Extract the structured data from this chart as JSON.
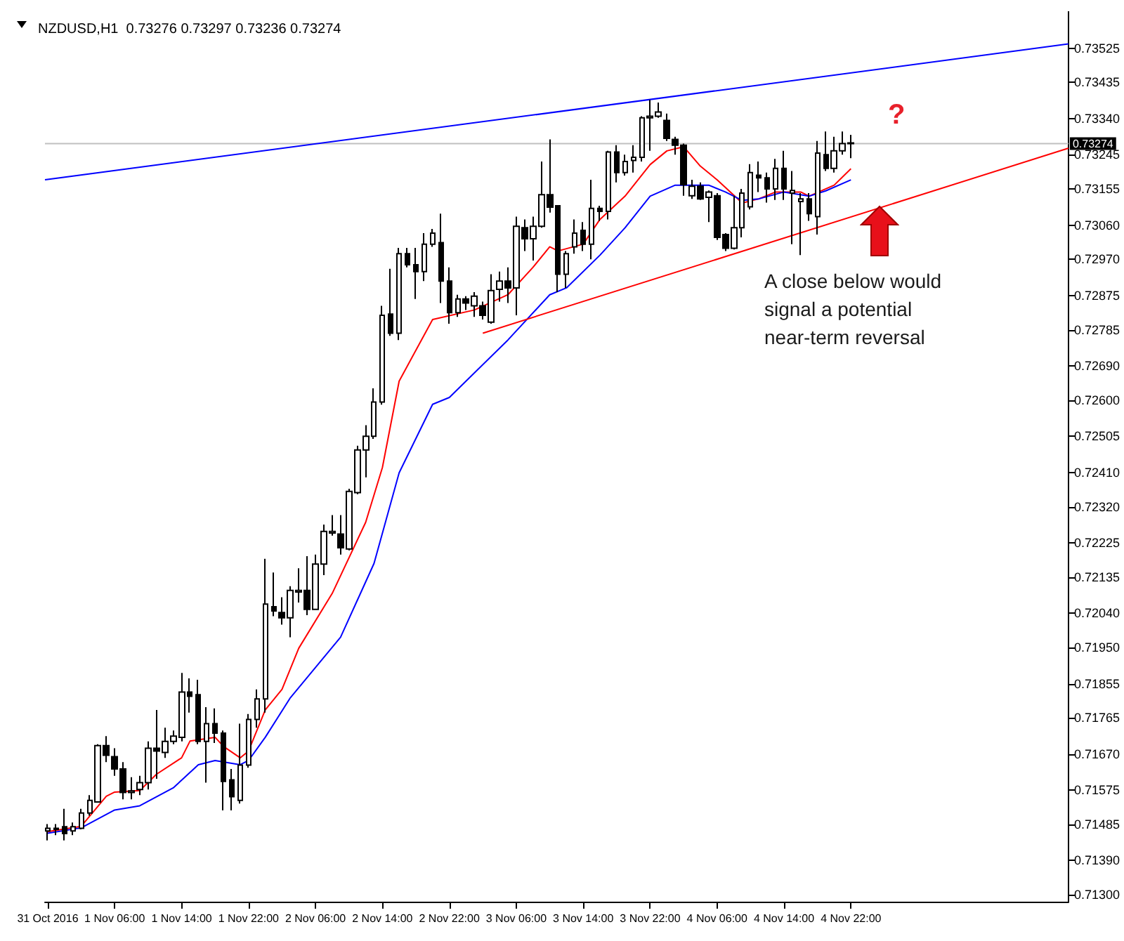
{
  "chart_data": {
    "type": "candlestick",
    "title": "NZDUSD,H1  0.73276 0.73297 0.73236 0.73274",
    "x": [
      "2016-10-31T22:00",
      "2016-10-31T23:00",
      "2016-11-01T00:00",
      "2016-11-01T01:00",
      "2016-11-01T02:00",
      "2016-11-01T03:00",
      "2016-11-01T04:00",
      "2016-11-01T05:00",
      "2016-11-01T06:00",
      "2016-11-01T07:00",
      "2016-11-01T08:00",
      "2016-11-01T09:00",
      "2016-11-01T10:00",
      "2016-11-01T11:00",
      "2016-11-01T12:00",
      "2016-11-01T13:00",
      "2016-11-01T14:00",
      "2016-11-01T15:00",
      "2016-11-01T16:00",
      "2016-11-01T17:00",
      "2016-11-01T18:00",
      "2016-11-01T19:00",
      "2016-11-01T20:00",
      "2016-11-01T21:00",
      "2016-11-01T22:00",
      "2016-11-01T23:00",
      "2016-11-02T00:00",
      "2016-11-02T01:00",
      "2016-11-02T02:00",
      "2016-11-02T03:00",
      "2016-11-02T04:00",
      "2016-11-02T05:00",
      "2016-11-02T06:00",
      "2016-11-02T07:00",
      "2016-11-02T08:00",
      "2016-11-02T09:00",
      "2016-11-02T10:00",
      "2016-11-02T11:00",
      "2016-11-02T12:00",
      "2016-11-02T13:00",
      "2016-11-02T14:00",
      "2016-11-02T15:00",
      "2016-11-02T16:00",
      "2016-11-02T17:00",
      "2016-11-02T18:00",
      "2016-11-02T19:00",
      "2016-11-02T20:00",
      "2016-11-02T21:00",
      "2016-11-02T22:00",
      "2016-11-02T23:00",
      "2016-11-03T00:00",
      "2016-11-03T01:00",
      "2016-11-03T02:00",
      "2016-11-03T03:00",
      "2016-11-03T04:00",
      "2016-11-03T05:00",
      "2016-11-03T06:00",
      "2016-11-03T07:00",
      "2016-11-03T08:00",
      "2016-11-03T09:00",
      "2016-11-03T10:00",
      "2016-11-03T11:00",
      "2016-11-03T12:00",
      "2016-11-03T13:00",
      "2016-11-03T14:00",
      "2016-11-03T15:00",
      "2016-11-03T16:00",
      "2016-11-03T17:00",
      "2016-11-03T18:00",
      "2016-11-03T19:00",
      "2016-11-03T20:00",
      "2016-11-03T21:00",
      "2016-11-03T22:00",
      "2016-11-03T23:00",
      "2016-11-04T00:00",
      "2016-11-04T01:00",
      "2016-11-04T02:00",
      "2016-11-04T03:00",
      "2016-11-04T04:00",
      "2016-11-04T05:00",
      "2016-11-04T06:00",
      "2016-11-04T07:00",
      "2016-11-04T08:00",
      "2016-11-04T09:00",
      "2016-11-04T10:00",
      "2016-11-04T11:00",
      "2016-11-04T12:00",
      "2016-11-04T13:00",
      "2016-11-04T14:00",
      "2016-11-04T15:00",
      "2016-11-04T16:00",
      "2016-11-04T17:00",
      "2016-11-04T18:00",
      "2016-11-04T19:00",
      "2016-11-04T20:00",
      "2016-11-04T21:00",
      "2016-11-04T22:00"
    ],
    "ohlc": [
      [
        0.71468,
        0.71486,
        0.71443,
        0.71475
      ],
      [
        0.71475,
        0.71486,
        0.71457,
        0.71472
      ],
      [
        0.71479,
        0.71526,
        0.71443,
        0.71461
      ],
      [
        0.71468,
        0.7149,
        0.71457,
        0.71479
      ],
      [
        0.71475,
        0.71526,
        0.71472,
        0.71515
      ],
      [
        0.71515,
        0.71562,
        0.71508,
        0.71548
      ],
      [
        0.71544,
        0.71696,
        0.71544,
        0.71692
      ],
      [
        0.71692,
        0.71717,
        0.71649,
        0.71667
      ],
      [
        0.71663,
        0.71685,
        0.71613,
        0.71631
      ],
      [
        0.71631,
        0.71649,
        0.71551,
        0.71569
      ],
      [
        0.71569,
        0.71609,
        0.71551,
        0.71573
      ],
      [
        0.71577,
        0.71613,
        0.71562,
        0.71595
      ],
      [
        0.71595,
        0.71703,
        0.71577,
        0.71685
      ],
      [
        0.71685,
        0.71786,
        0.71605,
        0.71678
      ],
      [
        0.71674,
        0.71739,
        0.7166,
        0.71703
      ],
      [
        0.71703,
        0.71732,
        0.71696,
        0.71717
      ],
      [
        0.71714,
        0.71883,
        0.71703,
        0.71833
      ],
      [
        0.71833,
        0.71869,
        0.71779,
        0.71822
      ],
      [
        0.71826,
        0.71865,
        0.71696,
        0.71703
      ],
      [
        0.71703,
        0.71793,
        0.71595,
        0.7175
      ],
      [
        0.7175,
        0.7179,
        0.71699,
        0.71725
      ],
      [
        0.71725,
        0.71732,
        0.71522,
        0.71598
      ],
      [
        0.71602,
        0.71631,
        0.71522,
        0.71558
      ],
      [
        0.71548,
        0.7175,
        0.7154,
        0.71641
      ],
      [
        0.71641,
        0.71775,
        0.71634,
        0.71761
      ],
      [
        0.71761,
        0.7184,
        0.71739,
        0.71815
      ],
      [
        0.71815,
        0.72183,
        0.71779,
        0.72064
      ],
      [
        0.72057,
        0.72147,
        0.72032,
        0.72046
      ],
      [
        0.72042,
        0.72082,
        0.7201,
        0.72028
      ],
      [
        0.72028,
        0.72111,
        0.71977,
        0.721
      ],
      [
        0.72096,
        0.72158,
        0.72068,
        0.721
      ],
      [
        0.721,
        0.7219,
        0.72035,
        0.7205
      ],
      [
        0.7205,
        0.72194,
        0.7205,
        0.72169
      ],
      [
        0.72169,
        0.72273,
        0.7214,
        0.72255
      ],
      [
        0.72251,
        0.72298,
        0.72244,
        0.72255
      ],
      [
        0.72248,
        0.72298,
        0.72194,
        0.72212
      ],
      [
        0.72209,
        0.72367,
        0.72205,
        0.7236
      ],
      [
        0.72357,
        0.7248,
        0.72353,
        0.72469
      ],
      [
        0.72469,
        0.72534,
        0.72397,
        0.72505
      ],
      [
        0.72505,
        0.72631,
        0.72498,
        0.72595
      ],
      [
        0.72595,
        0.72848,
        0.72588,
        0.72823
      ],
      [
        0.72826,
        0.72945,
        0.72769,
        0.72776
      ],
      [
        0.72776,
        0.73,
        0.72758,
        0.72985
      ],
      [
        0.72985,
        0.73,
        0.72949,
        0.72956
      ],
      [
        0.72956,
        0.73,
        0.72866,
        0.72938
      ],
      [
        0.72938,
        0.73039,
        0.72913,
        0.7301
      ],
      [
        0.7301,
        0.7305,
        0.73003,
        0.73039
      ],
      [
        0.73014,
        0.7309,
        0.72855,
        0.72913
      ],
      [
        0.72913,
        0.72949,
        0.72801,
        0.7283
      ],
      [
        0.7283,
        0.72877,
        0.72819,
        0.72866
      ],
      [
        0.72866,
        0.72873,
        0.72837,
        0.72855
      ],
      [
        0.72848,
        0.72884,
        0.72819,
        0.72873
      ],
      [
        0.72848,
        0.72859,
        0.72812,
        0.72823
      ],
      [
        0.72805,
        0.72931,
        0.72801,
        0.72888
      ],
      [
        0.72891,
        0.72938,
        0.72859,
        0.72913
      ],
      [
        0.72913,
        0.72949,
        0.72855,
        0.72895
      ],
      [
        0.72895,
        0.73082,
        0.72823,
        0.73057
      ],
      [
        0.73053,
        0.73075,
        0.72992,
        0.73024
      ],
      [
        0.73024,
        0.73082,
        0.72967,
        0.73057
      ],
      [
        0.73057,
        0.73227,
        0.73053,
        0.7314
      ],
      [
        0.7314,
        0.73285,
        0.73093,
        0.73107
      ],
      [
        0.73111,
        0.73111,
        0.72884,
        0.72931
      ],
      [
        0.72931,
        0.72992,
        0.72895,
        0.72985
      ],
      [
        0.73003,
        0.73075,
        0.72985,
        0.73039
      ],
      [
        0.73046,
        0.73068,
        0.72992,
        0.7301
      ],
      [
        0.7301,
        0.73179,
        0.7297,
        0.73104
      ],
      [
        0.73104,
        0.73111,
        0.73071,
        0.73096
      ],
      [
        0.73096,
        0.73255,
        0.73075,
        0.73252
      ],
      [
        0.73252,
        0.7327,
        0.73172,
        0.73198
      ],
      [
        0.73198,
        0.73245,
        0.7319,
        0.73227
      ],
      [
        0.7323,
        0.7327,
        0.73198,
        0.73238
      ],
      [
        0.73238,
        0.73346,
        0.73227,
        0.73342
      ],
      [
        0.73342,
        0.73389,
        0.73255,
        0.73346
      ],
      [
        0.73346,
        0.73382,
        0.73342,
        0.73357
      ],
      [
        0.73335,
        0.73353,
        0.73281,
        0.73288
      ],
      [
        0.73285,
        0.73292,
        0.73245,
        0.7327
      ],
      [
        0.7327,
        0.73274,
        0.73137,
        0.73166
      ],
      [
        0.73137,
        0.73179,
        0.73129,
        0.73162
      ],
      [
        0.73162,
        0.73172,
        0.73126,
        0.73129
      ],
      [
        0.73133,
        0.73151,
        0.73068,
        0.73147
      ],
      [
        0.73137,
        0.73144,
        0.73021,
        0.73028
      ],
      [
        0.73035,
        0.73039,
        0.72992,
        0.72999
      ],
      [
        0.72999,
        0.73137,
        0.72996,
        0.73053
      ],
      [
        0.73053,
        0.73155,
        0.73028,
        0.73144
      ],
      [
        0.73108,
        0.7322,
        0.73101,
        0.73198
      ],
      [
        0.73191,
        0.73227,
        0.73147,
        0.73184
      ],
      [
        0.73184,
        0.73198,
        0.73119,
        0.73155
      ],
      [
        0.73155,
        0.73234,
        0.73126,
        0.73209
      ],
      [
        0.73209,
        0.73255,
        0.73126,
        0.73155
      ],
      [
        0.73144,
        0.73202,
        0.7301,
        0.73151
      ],
      [
        0.73122,
        0.73144,
        0.72981,
        0.73129
      ],
      [
        0.73129,
        0.73144,
        0.73071,
        0.7309
      ],
      [
        0.73082,
        0.73281,
        0.73035,
        0.73249
      ],
      [
        0.73245,
        0.73306,
        0.73202,
        0.73209
      ],
      [
        0.73209,
        0.73292,
        0.73198,
        0.73255
      ],
      [
        0.73255,
        0.73306,
        0.73245,
        0.73274
      ],
      [
        0.73276,
        0.73297,
        0.73236,
        0.73274
      ]
    ],
    "series": [
      {
        "type": "line",
        "color": "#ff0000",
        "x": [
          "2016-10-31T22:00",
          "2016-11-01T02:00",
          "2016-11-01T05:00",
          "2016-11-01T06:00",
          "2016-11-01T09:00",
          "2016-11-01T11:00",
          "2016-11-01T14:00",
          "2016-11-01T15:00",
          "2016-11-01T18:00",
          "2016-11-01T19:00",
          "2016-11-01T21:00",
          "2016-11-01T22:00",
          "2016-11-02T00:00",
          "2016-11-02T02:00",
          "2016-11-02T04:00",
          "2016-11-02T08:00",
          "2016-11-02T12:00",
          "2016-11-02T14:00",
          "2016-11-02T16:00",
          "2016-11-02T20:00",
          "2016-11-03T01:00",
          "2016-11-03T05:00",
          "2016-11-03T08:00",
          "2016-11-03T10:00",
          "2016-11-03T11:00",
          "2016-11-03T14:00",
          "2016-11-03T16:00",
          "2016-11-03T19:00",
          "2016-11-03T22:00",
          "2016-11-04T00:00",
          "2016-11-04T02:00",
          "2016-11-04T04:00",
          "2016-11-04T06:00",
          "2016-11-04T09:00",
          "2016-11-04T11:00",
          "2016-11-04T13:00",
          "2016-11-04T16:00",
          "2016-11-04T17:00",
          "2016-11-04T20:00",
          "2016-11-04T22:00"
        ],
        "values": [
          0.71466,
          0.7148,
          0.71559,
          0.7157,
          0.71574,
          0.71617,
          0.7166,
          0.71704,
          0.71714,
          0.7169,
          0.7166,
          0.71678,
          0.71786,
          0.7184,
          0.71948,
          0.72092,
          0.72279,
          0.72423,
          0.7265,
          0.72812,
          0.72837,
          0.72877,
          0.72949,
          0.73003,
          0.72992,
          0.7301,
          0.73075,
          0.73136,
          0.73219,
          0.73255,
          0.73266,
          0.73215,
          0.73179,
          0.73118,
          0.73129,
          0.73147,
          0.73147,
          0.73136,
          0.73165,
          0.73208
        ]
      },
      {
        "type": "line",
        "color": "#0000ff",
        "x": [
          "2016-10-31T22:00",
          "2016-11-01T02:00",
          "2016-11-01T06:00",
          "2016-11-01T09:00",
          "2016-11-01T13:00",
          "2016-11-01T16:00",
          "2016-11-01T18:00",
          "2016-11-01T21:00",
          "2016-11-01T22:00",
          "2016-11-02T00:00",
          "2016-11-02T03:00",
          "2016-11-02T09:00",
          "2016-11-02T13:00",
          "2016-11-02T16:00",
          "2016-11-02T20:00",
          "2016-11-02T22:00",
          "2016-11-03T05:00",
          "2016-11-03T10:00",
          "2016-11-03T12:00",
          "2016-11-03T16:00",
          "2016-11-03T19:00",
          "2016-11-03T22:00",
          "2016-11-04T01:00",
          "2016-11-04T05:00",
          "2016-11-04T07:00",
          "2016-11-04T09:00",
          "2016-11-04T11:00",
          "2016-11-04T14:00",
          "2016-11-04T17:00",
          "2016-11-04T19:00",
          "2016-11-04T22:00"
        ],
        "values": [
          0.71462,
          0.71476,
          0.71523,
          0.71534,
          0.71581,
          0.71642,
          0.71653,
          0.71642,
          0.71653,
          0.71714,
          0.71818,
          0.71977,
          0.72171,
          0.72409,
          0.72589,
          0.72607,
          0.72758,
          0.72877,
          0.72895,
          0.72981,
          0.73053,
          0.73136,
          0.73165,
          0.73165,
          0.73147,
          0.73125,
          0.73129,
          0.73147,
          0.73136,
          0.7315,
          0.73179
        ]
      },
      {
        "type": "line",
        "color": "#0000ff",
        "x": [
          "2016-10-31T21:40",
          "2016-11-06T00:00"
        ],
        "values": [
          0.73179,
          0.73536
        ]
      },
      {
        "type": "line",
        "color": "#ff0000",
        "x": [
          "2016-11-03T02:00",
          "2016-11-06T00:00"
        ],
        "values": [
          0.72776,
          0.73262
        ]
      }
    ],
    "marker": "none",
    "line_style": "solid",
    "xlim": [
      "2016-10-31T21:40",
      "2016-11-06T00:00"
    ],
    "xticks": [
      {
        "value": "2016-10-31T22:00",
        "label": "31 Oct 2016"
      },
      {
        "value": "2016-11-01T06:00",
        "label": "1 Nov 06:00"
      },
      {
        "value": "2016-11-01T14:00",
        "label": "1 Nov 14:00"
      },
      {
        "value": "2016-11-01T22:00",
        "label": "1 Nov 22:00"
      },
      {
        "value": "2016-11-02T06:00",
        "label": "2 Nov 06:00"
      },
      {
        "value": "2016-11-02T14:00",
        "label": "2 Nov 14:00"
      },
      {
        "value": "2016-11-02T22:00",
        "label": "2 Nov 22:00"
      },
      {
        "value": "2016-11-03T06:00",
        "label": "3 Nov 06:00"
      },
      {
        "value": "2016-11-03T14:00",
        "label": "3 Nov 14:00"
      },
      {
        "value": "2016-11-03T22:00",
        "label": "3 Nov 22:00"
      },
      {
        "value": "2016-11-04T06:00",
        "label": "4 Nov 06:00"
      },
      {
        "value": "2016-11-04T14:00",
        "label": "4 Nov 14:00"
      },
      {
        "value": "2016-11-04T22:00",
        "label": "4 Nov 22:00"
      }
    ],
    "ylim": [
      0.71282,
      0.73622
    ],
    "yticks": [
      {
        "value": 0.73525,
        "label": "0.73525"
      },
      {
        "value": 0.73435,
        "label": "0.73435"
      },
      {
        "value": 0.7334,
        "label": "0.73340"
      },
      {
        "value": 0.73245,
        "label": "0.73245"
      },
      {
        "value": 0.73155,
        "label": "0.73155"
      },
      {
        "value": 0.7306,
        "label": "0.73060"
      },
      {
        "value": 0.7297,
        "label": "0.72970"
      },
      {
        "value": 0.72875,
        "label": "0.72875"
      },
      {
        "value": 0.72785,
        "label": "0.72785"
      },
      {
        "value": 0.7269,
        "label": "0.72690"
      },
      {
        "value": 0.726,
        "label": "0.72600"
      },
      {
        "value": 0.72505,
        "label": "0.72505"
      },
      {
        "value": 0.7241,
        "label": "0.72410"
      },
      {
        "value": 0.7232,
        "label": "0.72320"
      },
      {
        "value": 0.72225,
        "label": "0.72225"
      },
      {
        "value": 0.72135,
        "label": "0.72135"
      },
      {
        "value": 0.7204,
        "label": "0.72040"
      },
      {
        "value": 0.7195,
        "label": "0.71950"
      },
      {
        "value": 0.71855,
        "label": "0.71855"
      },
      {
        "value": 0.71765,
        "label": "0.71765"
      },
      {
        "value": 0.7167,
        "label": "0.71670"
      },
      {
        "value": 0.71575,
        "label": "0.71575"
      },
      {
        "value": 0.71485,
        "label": "0.71485"
      },
      {
        "value": 0.7139,
        "label": "0.71390"
      },
      {
        "value": 0.713,
        "label": "0.71300"
      }
    ],
    "ref_lines": [
      {
        "axis": "y",
        "value": 0.73274,
        "label": "0.73274",
        "color": "#c0c0c0"
      }
    ],
    "annotations": [
      "?",
      "A close below would signal a potential near-term reversal"
    ]
  }
}
